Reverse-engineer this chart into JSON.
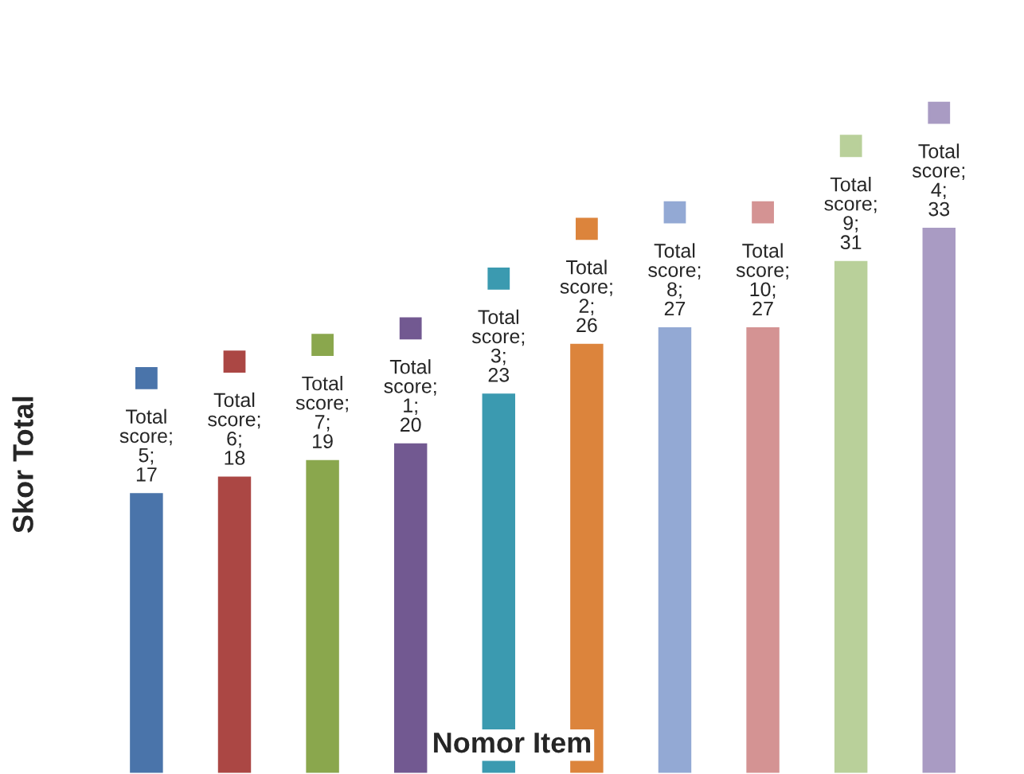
{
  "chart_data": {
    "type": "bar",
    "xlabel": "Nomor Item",
    "ylabel": "Skor Total",
    "categories": [
      null,
      null,
      null,
      null,
      null,
      null,
      null,
      null,
      null,
      null
    ],
    "series": [
      {
        "values": [
          17,
          18,
          19,
          20,
          23,
          26,
          27,
          27,
          31,
          33
        ],
        "colors": [
          "#4a74aa",
          "#ab4744",
          "#8aa74d",
          "#725991",
          "#3b9ab0",
          "#dc843c",
          "#93a9d4",
          "#d49393",
          "#b9d09a",
          "#a99bc3"
        ],
        "value_labels": [
          "Total score; 5; 17",
          "Total score; 6; 18",
          "Total score; 7; 19",
          "Total score; 1; 20",
          "Total score; 3; 23",
          "Total score; 2; 26",
          "Total score; 8; 27",
          "Total score; 10; 27",
          "Total score; 9; 31",
          "Total score; 4; 33"
        ]
      }
    ],
    "legend": false
  }
}
